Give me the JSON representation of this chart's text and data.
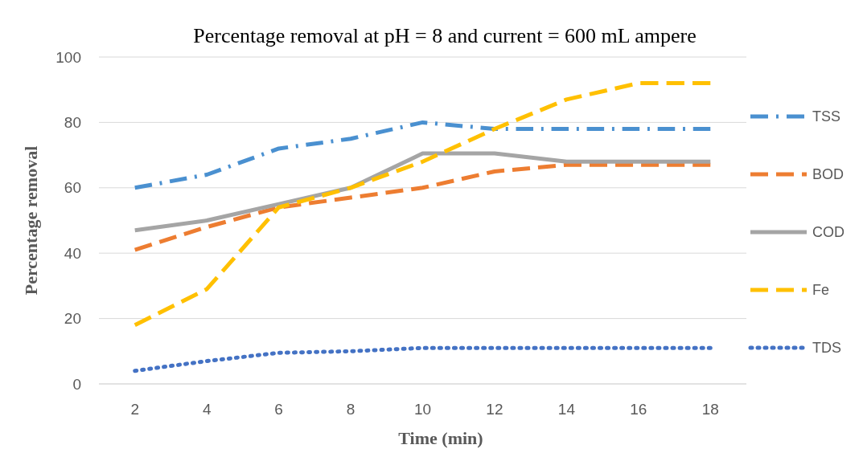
{
  "chart_data": {
    "type": "line",
    "title": "Percentage removal at pH = 8 and current = 600 mL ampere",
    "xlabel": "Time (min)",
    "ylabel": "Percentage removal",
    "categories": [
      "2",
      "4",
      "6",
      "8",
      "10",
      "12",
      "14",
      "16",
      "18"
    ],
    "series": [
      {
        "name": "TSS",
        "color": "#4a90d0",
        "line_style": "dashdot",
        "values": [
          60,
          64,
          72,
          75,
          80,
          78,
          78,
          78,
          78
        ]
      },
      {
        "name": "BOD",
        "color": "#ed7d31",
        "line_style": "dashed",
        "values": [
          41,
          48,
          54,
          57,
          60,
          65,
          67,
          67,
          67
        ]
      },
      {
        "name": "COD",
        "color": "#a5a5a5",
        "line_style": "solid",
        "values": [
          47,
          50,
          55,
          60,
          70.5,
          70.5,
          68,
          68,
          68
        ]
      },
      {
        "name": "Fe",
        "color": "#ffc000",
        "line_style": "dashed",
        "values": [
          18,
          29,
          54,
          60,
          68,
          78,
          87,
          92,
          92
        ]
      },
      {
        "name": "TDS",
        "color": "#4472c4",
        "line_style": "dotted",
        "values": [
          4,
          7,
          9.5,
          10,
          11,
          11,
          11,
          11,
          11
        ]
      }
    ],
    "ylim": [
      0,
      100
    ],
    "yticks": [
      0,
      20,
      40,
      60,
      80,
      100
    ],
    "grid": "y",
    "legend": "right",
    "marker": "none"
  }
}
